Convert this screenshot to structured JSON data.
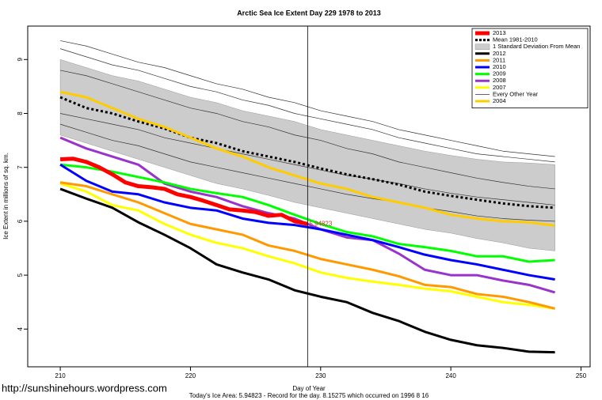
{
  "chart_data": {
    "type": "line",
    "title": "Arctic Sea Ice Extent Day 229 1978 to 2013",
    "xlabel": "Day of Year",
    "ylabel": "Ice Extent in millions of sq. km.",
    "watermark": "http://sunshinehours.wordpress.com",
    "footnote": "Today's Ice Area: 5.94823  - Record for the day. 8.15275 which occurred on 1996 8 16",
    "annotation": {
      "text": "5.94823",
      "x": 229,
      "y": 5.95
    },
    "vline": 229,
    "xlim": [
      207.5,
      250.7
    ],
    "ylim": [
      3.3,
      9.62
    ],
    "xticks": [
      210,
      220,
      230,
      240,
      250
    ],
    "yticks": [
      4,
      5,
      6,
      7,
      8,
      9
    ],
    "x": [
      210,
      212,
      214,
      216,
      218,
      220,
      222,
      224,
      226,
      228,
      230,
      232,
      234,
      236,
      238,
      240,
      242,
      244,
      246,
      248
    ],
    "series": [
      {
        "name": "2013",
        "color": "#ff0000",
        "width": 5,
        "style": "solid",
        "x": [
          210,
          211,
          212,
          213,
          214,
          215,
          216,
          217,
          218,
          219,
          220,
          221,
          222,
          223,
          224,
          225,
          226,
          227,
          228,
          229
        ],
        "values": [
          7.15,
          7.16,
          7.1,
          7.0,
          6.87,
          6.72,
          6.65,
          6.63,
          6.6,
          6.5,
          6.45,
          6.38,
          6.3,
          6.22,
          6.2,
          6.17,
          6.1,
          6.12,
          6.0,
          5.95
        ]
      },
      {
        "name": "Mean 1981-2010",
        "color": "#000000",
        "width": 3,
        "style": "dotted",
        "values": [
          8.3,
          8.1,
          8.0,
          7.85,
          7.72,
          7.55,
          7.45,
          7.3,
          7.2,
          7.1,
          6.98,
          6.87,
          6.78,
          6.68,
          6.55,
          6.47,
          6.4,
          6.33,
          6.28,
          6.25
        ]
      },
      {
        "name": "1 Standard Deviation From Mean",
        "color": "#cccccc",
        "style": "band",
        "upper": [
          9.0,
          8.85,
          8.7,
          8.6,
          8.45,
          8.3,
          8.2,
          8.05,
          7.95,
          7.85,
          7.7,
          7.6,
          7.5,
          7.4,
          7.3,
          7.22,
          7.15,
          7.1,
          7.08,
          7.05
        ],
        "lower": [
          7.6,
          7.45,
          7.3,
          7.15,
          7.0,
          6.85,
          6.7,
          6.6,
          6.48,
          6.35,
          6.25,
          6.15,
          6.05,
          5.95,
          5.85,
          5.78,
          5.68,
          5.6,
          5.5,
          5.45
        ]
      },
      {
        "name": "2012",
        "color": "#000000",
        "width": 3,
        "style": "solid",
        "values": [
          6.6,
          6.42,
          6.25,
          5.98,
          5.75,
          5.5,
          5.2,
          5.05,
          4.92,
          4.72,
          4.6,
          4.5,
          4.3,
          4.15,
          3.95,
          3.8,
          3.7,
          3.65,
          3.58,
          3.57
        ]
      },
      {
        "name": "2011",
        "color": "#ff9900",
        "width": 3,
        "style": "solid",
        "values": [
          6.72,
          6.65,
          6.5,
          6.35,
          6.15,
          5.95,
          5.85,
          5.75,
          5.55,
          5.45,
          5.3,
          5.2,
          5.1,
          4.98,
          4.82,
          4.78,
          4.65,
          4.6,
          4.5,
          4.38
        ]
      },
      {
        "name": "2010",
        "color": "#0000ff",
        "width": 3,
        "style": "solid",
        "values": [
          7.05,
          6.75,
          6.55,
          6.5,
          6.35,
          6.25,
          6.2,
          6.05,
          5.97,
          5.93,
          5.85,
          5.75,
          5.65,
          5.52,
          5.38,
          5.28,
          5.2,
          5.1,
          5.0,
          4.92
        ]
      },
      {
        "name": "2009",
        "color": "#00ff00",
        "width": 3,
        "style": "solid",
        "values": [
          7.05,
          7.0,
          6.92,
          6.82,
          6.72,
          6.6,
          6.52,
          6.45,
          6.3,
          6.12,
          5.95,
          5.8,
          5.72,
          5.58,
          5.52,
          5.45,
          5.35,
          5.35,
          5.25,
          5.28
        ]
      },
      {
        "name": "2008",
        "color": "#9933cc",
        "width": 3,
        "style": "solid",
        "values": [
          7.55,
          7.35,
          7.2,
          7.05,
          6.7,
          6.55,
          6.45,
          6.28,
          6.15,
          6.05,
          5.85,
          5.7,
          5.65,
          5.4,
          5.1,
          5.0,
          5.0,
          4.9,
          4.82,
          4.68
        ]
      },
      {
        "name": "2007",
        "color": "#ffff00",
        "width": 3,
        "style": "solid",
        "values": [
          6.7,
          6.55,
          6.3,
          6.2,
          5.95,
          5.75,
          5.6,
          5.5,
          5.35,
          5.22,
          5.05,
          4.95,
          4.88,
          4.82,
          4.75,
          4.7,
          4.6,
          4.5,
          4.45,
          4.38
        ]
      },
      {
        "name": "Every Other Year",
        "color": "#333333",
        "width": 0.7,
        "style": "thin",
        "lines": [
          [
            9.35,
            9.25,
            9.1,
            8.95,
            8.85,
            8.7,
            8.55,
            8.45,
            8.3,
            8.2,
            8.05,
            7.95,
            7.85,
            7.7,
            7.6,
            7.5,
            7.4,
            7.3,
            7.25,
            7.2
          ],
          [
            9.2,
            9.05,
            8.9,
            8.8,
            8.65,
            8.5,
            8.4,
            8.25,
            8.15,
            8.0,
            7.9,
            7.8,
            7.7,
            7.55,
            7.45,
            7.35,
            7.25,
            7.2,
            7.15,
            7.1
          ],
          [
            8.8,
            8.7,
            8.55,
            8.4,
            8.25,
            8.1,
            8.0,
            7.85,
            7.75,
            7.6,
            7.5,
            7.35,
            7.25,
            7.1,
            7.0,
            6.9,
            6.8,
            6.72,
            6.65,
            6.6
          ],
          [
            8.0,
            7.9,
            7.8,
            7.7,
            7.55,
            7.45,
            7.35,
            7.25,
            7.15,
            7.05,
            6.95,
            6.85,
            6.78,
            6.7,
            6.6,
            6.52,
            6.45,
            6.4,
            6.35,
            6.3
          ],
          [
            7.8,
            7.65,
            7.5,
            7.4,
            7.25,
            7.1,
            7.0,
            6.9,
            6.8,
            6.7,
            6.6,
            6.5,
            6.42,
            6.35,
            6.25,
            6.18,
            6.1,
            6.05,
            6.02,
            6.0
          ]
        ]
      },
      {
        "name": "2004",
        "color": "#ffcc00",
        "width": 3,
        "style": "solid",
        "values": [
          8.4,
          8.3,
          8.1,
          7.9,
          7.75,
          7.55,
          7.35,
          7.2,
          7.0,
          6.85,
          6.7,
          6.6,
          6.45,
          6.35,
          6.25,
          6.12,
          6.05,
          6.0,
          5.98,
          5.92
        ]
      }
    ]
  }
}
